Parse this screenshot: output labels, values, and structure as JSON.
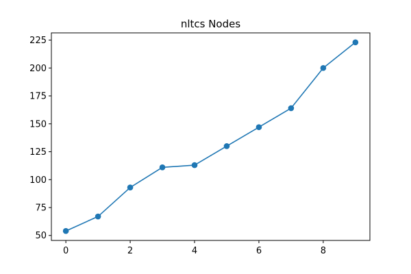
{
  "chart_data": {
    "type": "line",
    "title": "nltcs Nodes",
    "xlabel": "",
    "ylabel": "",
    "x": [
      0,
      1,
      2,
      3,
      4,
      5,
      6,
      7,
      8,
      9
    ],
    "series": [
      {
        "values": [
          54,
          67,
          93,
          111,
          113,
          130,
          147,
          164,
          200,
          223
        ],
        "color": "#1f77b4",
        "marker": "circle"
      }
    ],
    "xlim": [
      -0.45,
      9.45
    ],
    "ylim": [
      45.55,
      231.45
    ],
    "xticks": [
      0,
      2,
      4,
      6,
      8
    ],
    "xtick_labels": [
      "0",
      "2",
      "4",
      "6",
      "8"
    ],
    "yticks": [
      50,
      75,
      100,
      125,
      150,
      175,
      200,
      225
    ],
    "ytick_labels": [
      "50",
      "75",
      "100",
      "125",
      "150",
      "175",
      "200",
      "225"
    ],
    "grid": false,
    "legend": "none"
  }
}
